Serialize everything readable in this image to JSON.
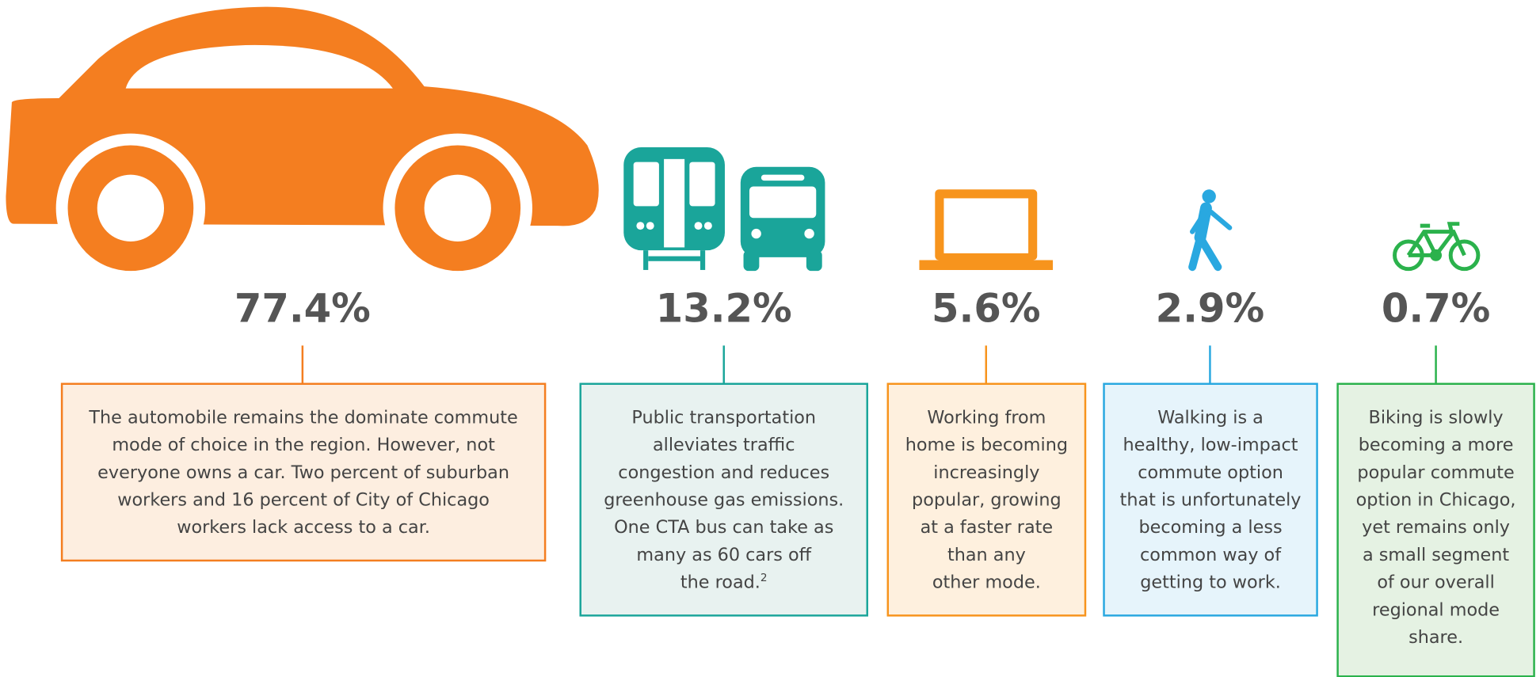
{
  "items": [
    {
      "value": "77.4%",
      "lines": [
        "The automobile remains the dominate commute",
        "mode of choice in the region. However, not",
        "everyone owns a car. Two percent of suburban",
        "workers and 16 percent of City of Chicago",
        "workers lack access to a car."
      ]
    },
    {
      "value": "13.2%",
      "lines": [
        "Public transportation",
        "alleviates traffic",
        "congestion and reduces",
        "greenhouse gas emissions.",
        "One CTA bus can take as",
        "many as 60 cars off",
        "the road."
      ],
      "note": "2"
    },
    {
      "value": "5.6%",
      "lines": [
        "Working from",
        "home is becoming",
        "increasingly",
        "popular, growing",
        "at a faster rate",
        "than any",
        "other mode."
      ]
    },
    {
      "value": "2.9%",
      "lines": [
        "Walking is a",
        "healthy, low-impact",
        "commute option",
        "that is unfortunately",
        "becoming a less",
        "common way of",
        "getting to work."
      ]
    },
    {
      "value": "0.7%",
      "lines": [
        "Biking is slowly",
        "becoming a more",
        "popular commute",
        "option in Chicago,",
        "yet remains only",
        "a small segment",
        "of our overall",
        "regional mode",
        "share."
      ]
    }
  ]
}
